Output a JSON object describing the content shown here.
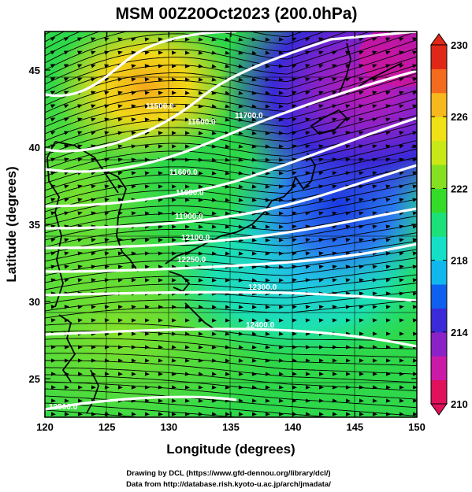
{
  "title": "MSM 00Z20Oct2023 (200.0hPa)",
  "xlabel": "Longitude (degrees)",
  "ylabel": "Latitude  (degrees)",
  "xticks": [
    "120",
    "125",
    "130",
    "135",
    "140",
    "145",
    "150"
  ],
  "yticks": [
    "25",
    "30",
    "35",
    "40",
    "45"
  ],
  "colorbar": {
    "ticks": [
      "230",
      "226",
      "222",
      "218",
      "214",
      "210"
    ],
    "colors": [
      "#e0105a",
      "#cc1aa8",
      "#8a22c8",
      "#3a2ad8",
      "#1060f0",
      "#10b8ee",
      "#14e0c8",
      "#1ce07a",
      "#34dc2a",
      "#86e022",
      "#c8e818",
      "#f0e016",
      "#f6b81c",
      "#f46a1e",
      "#e02818"
    ]
  },
  "contour_labels": [
    "11500.0",
    "11600.0",
    "11700.0",
    "11600.0",
    "11650.0",
    "11900.0",
    "12100.0",
    "12250.0",
    "12300.0",
    "12400.0",
    "12500.0"
  ],
  "credits": {
    "line1": "Drawing by DCL (https://www.gfd-dennou.org/library/dcl/)",
    "line2": "Data from http://database.rish.kyoto-u.ac.jp/arch/jmadata/"
  },
  "chart_data": {
    "type": "heatmap",
    "title": "MSM 00Z20Oct2023 (200.0hPa)",
    "xlabel": "Longitude (degrees)",
    "ylabel": "Latitude  (degrees)",
    "xlim": [
      120,
      150
    ],
    "ylim": [
      22.5,
      47.5
    ],
    "colorbar_range": [
      210,
      230
    ],
    "colorbar_ticks": [
      210,
      214,
      218,
      222,
      226,
      230
    ],
    "field_regions": [
      {
        "lon": 128,
        "lat": 44,
        "value": 226
      },
      {
        "lon": 142,
        "lat": 43,
        "value": 214
      },
      {
        "lon": 148,
        "lat": 46,
        "value": 211
      },
      {
        "lon": 140,
        "lat": 36,
        "value": 217
      },
      {
        "lon": 125,
        "lat": 35,
        "value": 222
      },
      {
        "lon": 135,
        "lat": 25,
        "value": 222
      }
    ],
    "contours": [
      "11500.0",
      "11600.0",
      "11700.0",
      "11650.0",
      "11900.0",
      "12100.0",
      "12250.0",
      "12300.0",
      "12400.0",
      "12500.0"
    ]
  }
}
